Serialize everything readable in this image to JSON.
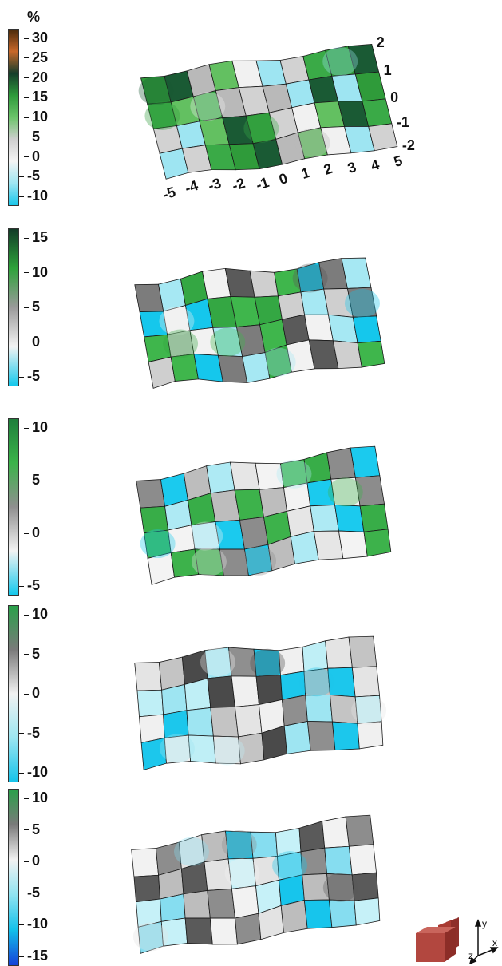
{
  "unit_label": "%",
  "colorbars": [
    {
      "ticks": [
        "30",
        "25",
        "20",
        "15",
        "10",
        "5",
        "0",
        "-5",
        "-10"
      ],
      "stops": [
        "#4a2a0a",
        "#c8682a",
        "#163d2b",
        "#2e9a3b",
        "#6cc36a",
        "#cfcfcf",
        "#f4f4f4",
        "#9fe6f2",
        "#19c6ea"
      ]
    },
    {
      "ticks": [
        "15",
        "10",
        "5",
        "0",
        "-5"
      ],
      "stops": [
        "#123c28",
        "#2ea23a",
        "#9a9a9a",
        "#f3f3f3",
        "#14c8ec"
      ]
    },
    {
      "ticks": [
        "10",
        "5",
        "0",
        "-5"
      ],
      "stops": [
        "#1f7f3c",
        "#3bb34a",
        "#8f8f8f",
        "#f3f3f3",
        "#14c8ec"
      ]
    },
    {
      "ticks": [
        "10",
        "5",
        "0",
        "-5",
        "-10"
      ],
      "stops": [
        "#2aa04a",
        "#7a7a7a",
        "#f2f2f2",
        "#9de6f1",
        "#15c3ea"
      ]
    },
    {
      "ticks": [
        "10",
        "5",
        "0",
        "-5",
        "-10",
        "-15"
      ],
      "stops": [
        "#2aa04a",
        "#7a7a7a",
        "#f2f2f2",
        "#8fe3f1",
        "#12c0ea",
        "#1540d8"
      ]
    }
  ],
  "axis_x_labels": [
    "-5",
    "-4",
    "-3",
    "-2",
    "-1",
    "0",
    "1",
    "2",
    "3",
    "4",
    "5"
  ],
  "axis_y_labels": [
    "2",
    "1",
    "0",
    "-1",
    "-2"
  ],
  "triad": {
    "x": "x",
    "y": "y",
    "z": "z"
  },
  "panels": [
    {
      "palette": [
        "#2f9b3a",
        "#63c061",
        "#d2d2d2",
        "#1a5a34",
        "#f1f1f1",
        "#3aaa47",
        "#b9b9b9",
        "#9ee5f2"
      ]
    },
    {
      "palette": [
        "#34a743",
        "#cfcfcf",
        "#7c7c7c",
        "#f2f2f2",
        "#3fb64c",
        "#a6e8f3",
        "#5a5a5a",
        "#15c7ec"
      ]
    },
    {
      "palette": [
        "#e6e6e6",
        "#38ad48",
        "#bdbdbd",
        "#f3f3f3",
        "#8c8c8c",
        "#aeeaf4",
        "#3db24b",
        "#1bcaee"
      ]
    },
    {
      "palette": [
        "#f0f0f0",
        "#c4c4c4",
        "#8f8f8f",
        "#bfeff6",
        "#4a4a4a",
        "#1cc7ec",
        "#e4e4e4",
        "#9ee5f2"
      ]
    },
    {
      "palette": [
        "#f2f2f2",
        "#bdbdbd",
        "#c6f1f8",
        "#8d8d8d",
        "#17c5ec",
        "#5a5a5a",
        "#e3e3e3",
        "#86ddf0"
      ]
    }
  ]
}
